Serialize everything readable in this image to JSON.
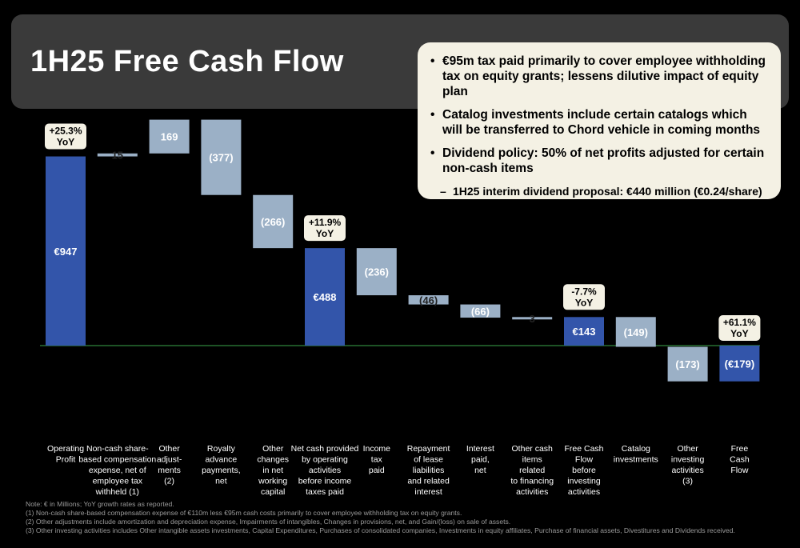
{
  "title": "1H25 Free Cash Flow",
  "bullets": [
    "€95m tax paid primarily to cover employee withholding tax on equity grants; lessens dilutive impact of equity plan",
    "Catalog investments include certain catalogs which will be transferred to Chord vehicle in coming months",
    "Dividend policy: 50% of net profits adjusted for certain non-cash items"
  ],
  "sub_bullet": "1H25 interim dividend proposal: €440 million (€0.24/share)",
  "notes": [
    "Note: € in Millions; YoY growth rates as reported.",
    "(1) Non-cash share-based compensation expense of €110m less €95m cash costs primarily to cover employee withholding tax on equity grants.",
    "(2) Other adjustments include amortization and depreciation expense, Impairments of intangibles, Changes in provisions, net, and Gain/(loss) on sale of assets.",
    "(3) Other investing activities includes Other intangible assets investments, Capital Expenditures, Purchases of consolidated companies, Investments in equity affiliates, Purchase of financial assets, Divestitures and Dividends received."
  ],
  "colors": {
    "total": "#3355aa",
    "step": "#9bb0c6",
    "axis": "#3aa64a",
    "callout": "#f4f1e4"
  },
  "chart_data": {
    "type": "bar",
    "subtype": "waterfall",
    "ylim": [
      -230,
      1130
    ],
    "categories": [
      "Operating Profit",
      "Non-cash share-based compensation expense, net of employee tax withheld (1)",
      "Other adjust- ments (2)",
      "Royalty advance payments, net",
      "Other changes in net working capital",
      "Net cash provided by operating activities before income taxes paid",
      "Income tax paid",
      "Repayment of lease liabilities and related interest",
      "Interest paid, net",
      "Other cash items related to financing activities",
      "Free Cash Flow before investing activities",
      "Catalog investments",
      "Other investing activities (3)",
      "Free Cash Flow"
    ],
    "category_lines": [
      [
        "Operating",
        "Profit"
      ],
      [
        "Non-cash share-",
        "based compensation",
        "expense, net of",
        "employee tax",
        "withheld (1)"
      ],
      [
        "Other",
        "adjust-",
        "ments",
        "(2)"
      ],
      [
        "Royalty",
        "advance",
        "payments,",
        "net"
      ],
      [
        "Other",
        "changes",
        "in net",
        "working",
        "capital"
      ],
      [
        "Net cash provided",
        "by operating",
        "activities",
        "before income",
        "taxes paid"
      ],
      [
        "Income",
        "tax",
        "paid"
      ],
      [
        "Repayment",
        "of lease",
        "liabilities",
        "and related",
        "interest"
      ],
      [
        "Interest",
        "paid,",
        "net"
      ],
      [
        "Other cash",
        "items",
        "related",
        "to financing",
        "activities"
      ],
      [
        "Free Cash",
        "Flow",
        "before",
        "investing",
        "activities"
      ],
      [
        "Catalog",
        "investments"
      ],
      [
        "Other",
        "investing",
        "activities",
        "(3)"
      ],
      [
        "Free",
        "Cash",
        "Flow"
      ]
    ],
    "values": [
      947,
      15,
      169,
      -377,
      -266,
      488,
      -236,
      -46,
      -66,
      3,
      143,
      -149,
      -173,
      -179
    ],
    "bar_kind": [
      "total",
      "step",
      "step",
      "step",
      "step",
      "total",
      "step",
      "step",
      "step",
      "step",
      "total",
      "step",
      "step",
      "total"
    ],
    "data_labels": [
      "€947",
      "15",
      "169",
      "(377)",
      "(266)",
      "€488",
      "(236)",
      "(46)",
      "(66)",
      "3",
      "€143",
      "(149)",
      "(173)",
      "(€179)"
    ],
    "callouts": [
      {
        "index": 0,
        "lines": [
          "+25.3%",
          "YoY"
        ]
      },
      {
        "index": 5,
        "lines": [
          "+11.9%",
          "YoY"
        ]
      },
      {
        "index": 10,
        "lines": [
          "-7.7%",
          "YoY"
        ]
      },
      {
        "index": 13,
        "lines": [
          "+61.1%",
          "YoY"
        ]
      }
    ]
  }
}
